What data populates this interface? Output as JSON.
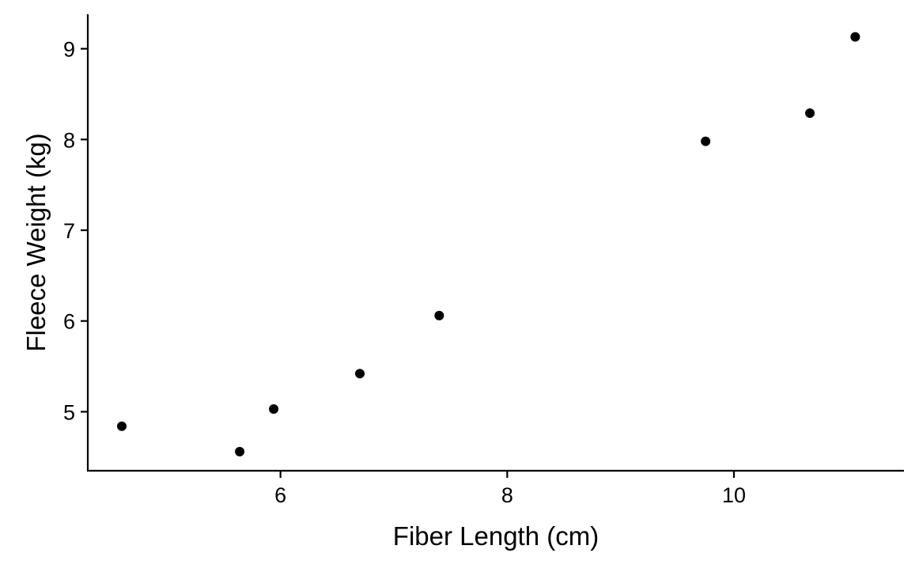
{
  "chart_data": {
    "type": "scatter",
    "title": "",
    "xlabel": "Fiber Length (cm)",
    "ylabel": "Fleece Weight (kg)",
    "xlim": [
      4.3,
      11.5
    ],
    "ylim": [
      4.35,
      9.38
    ],
    "x_ticks": [
      6,
      8,
      10
    ],
    "y_ticks": [
      5,
      6,
      7,
      8,
      9
    ],
    "grid": false,
    "legend": "none",
    "point_color": "#000000",
    "series": [
      {
        "x": [
          4.6,
          5.64,
          5.94,
          6.7,
          7.4,
          9.75,
          10.67,
          11.07
        ],
        "y": [
          4.84,
          4.56,
          5.03,
          5.42,
          6.06,
          7.98,
          8.29,
          9.13
        ]
      }
    ]
  }
}
